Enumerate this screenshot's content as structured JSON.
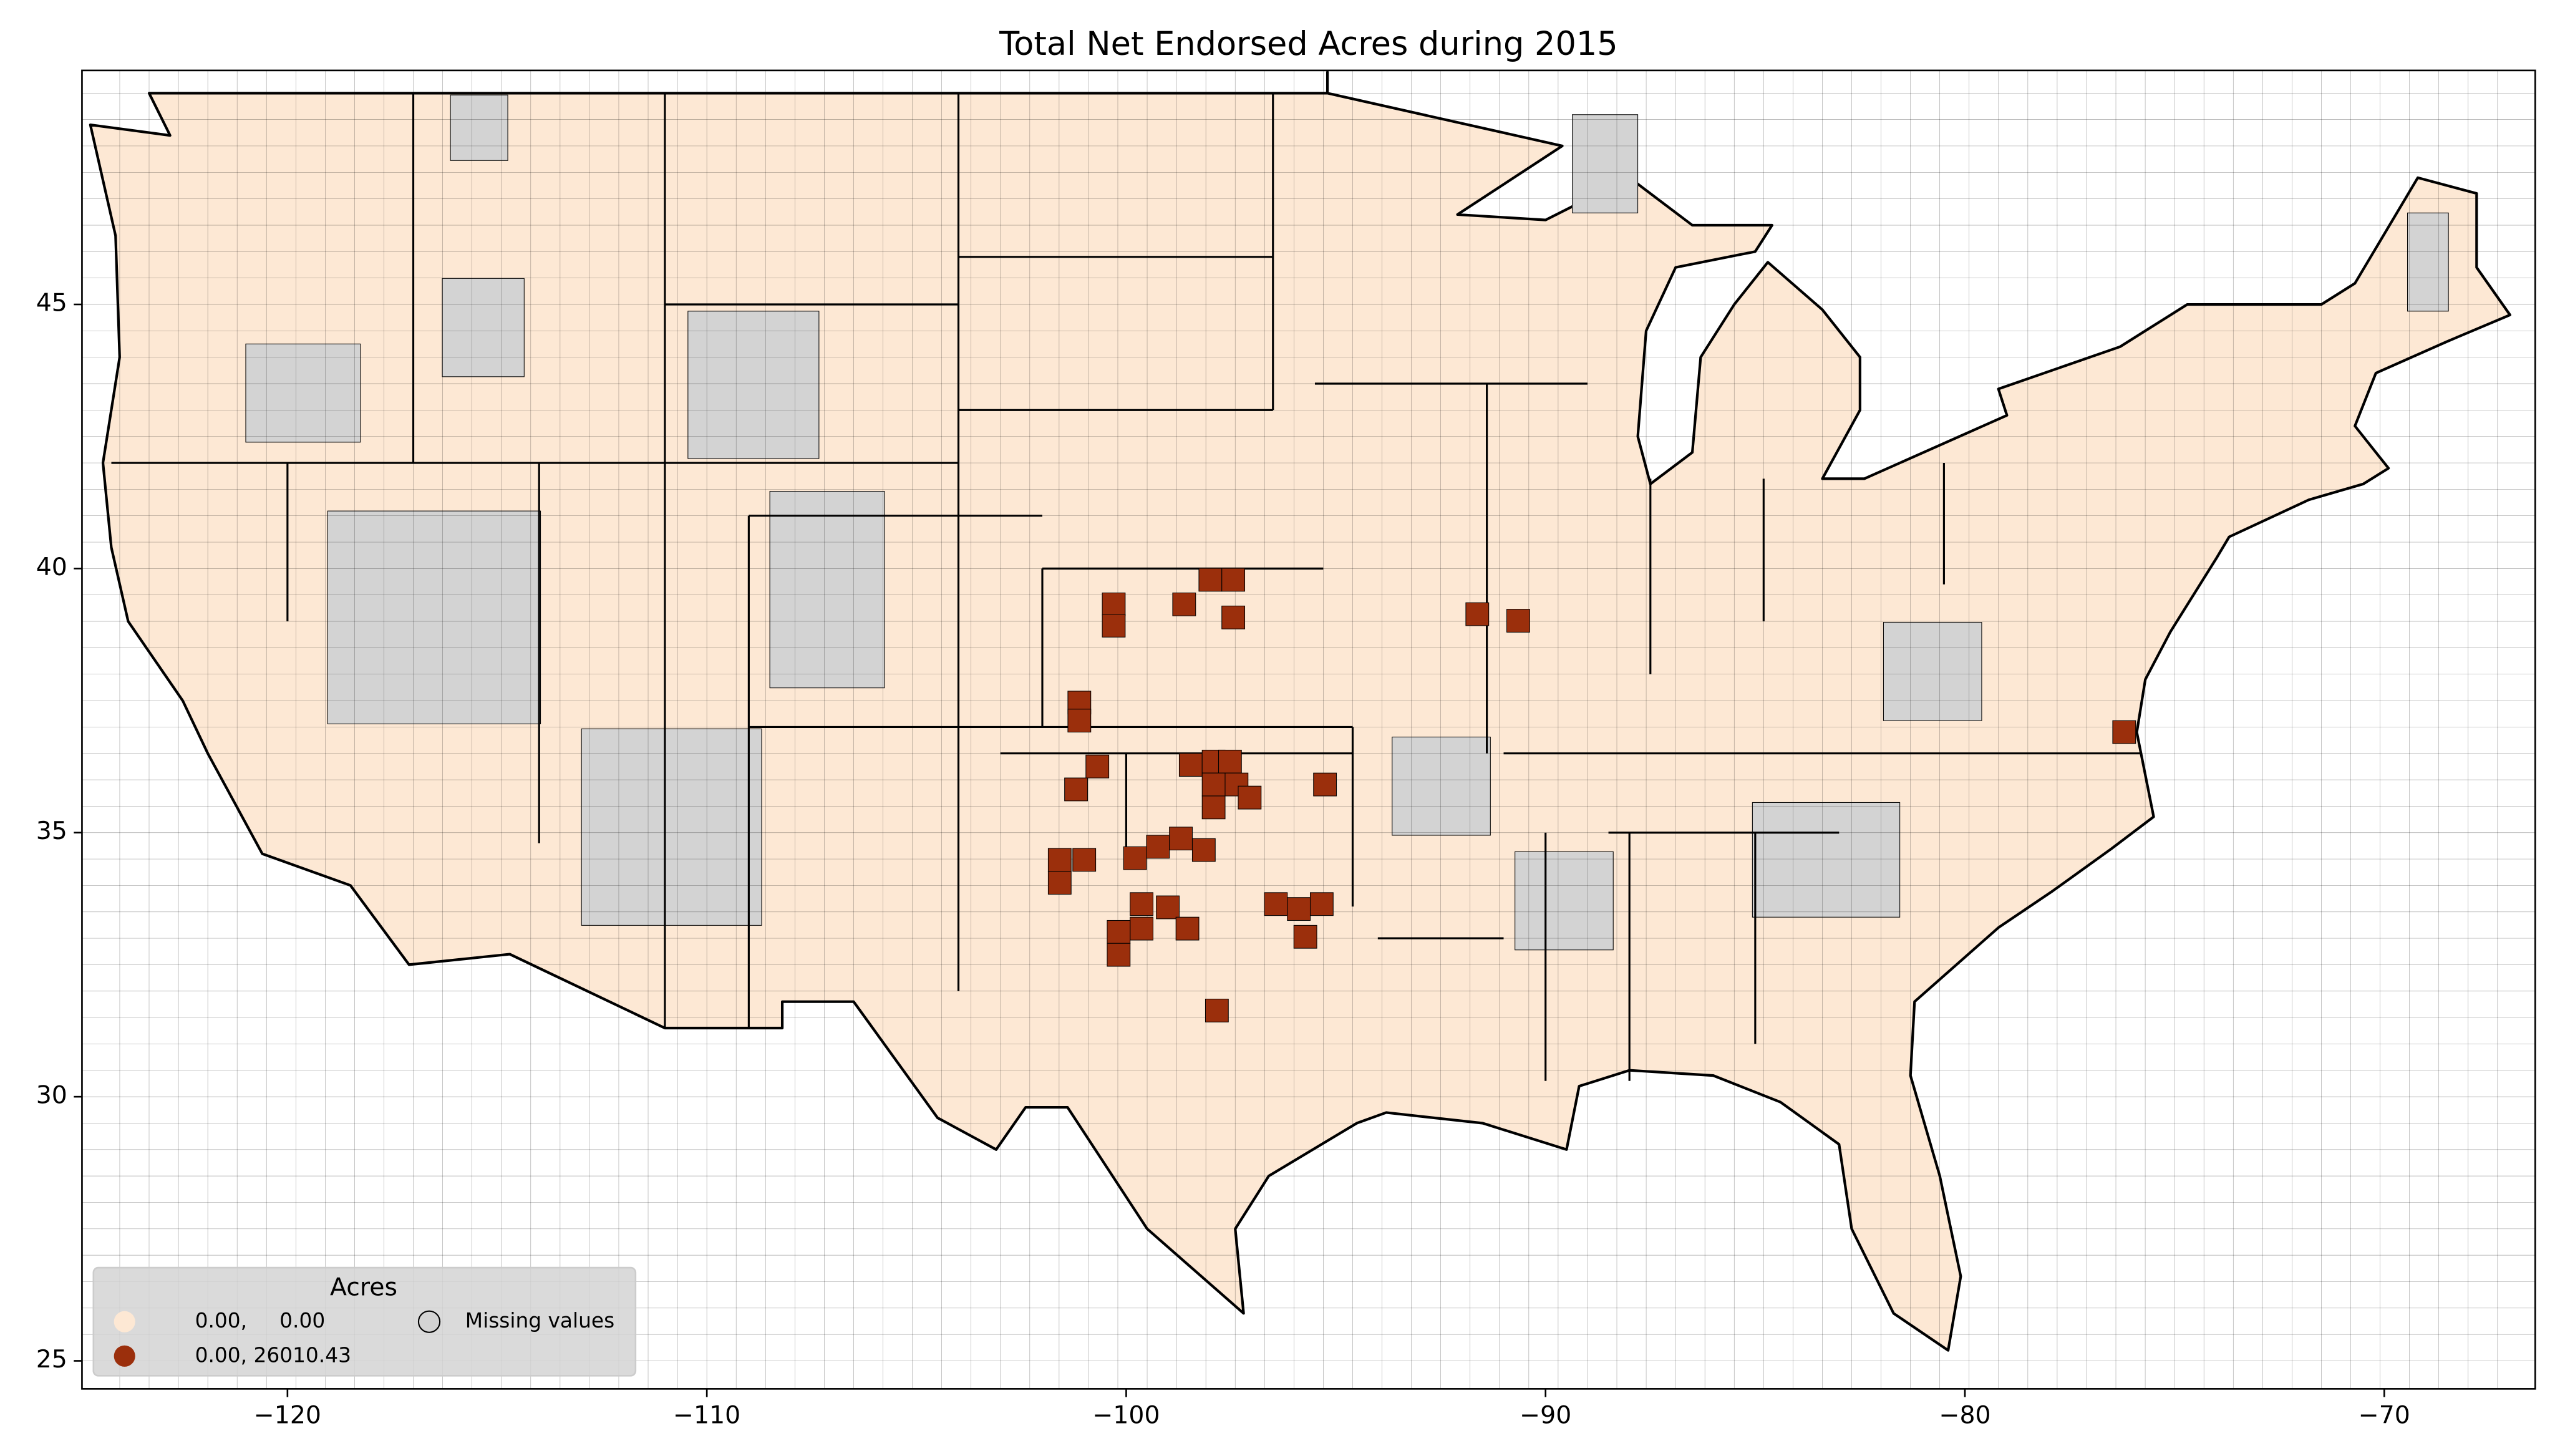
{
  "chart_data": {
    "type": "choropleth",
    "title": "Total Net Endorsed Acres during 2015",
    "xlim": [
      -124.9,
      -66.4
    ],
    "ylim": [
      24.47,
      49.43
    ],
    "xticks": [
      {
        "value": -120,
        "label": "−120"
      },
      {
        "value": -110,
        "label": "−110"
      },
      {
        "value": -100,
        "label": "−100"
      },
      {
        "value": -90,
        "label": "−90"
      },
      {
        "value": -80,
        "label": "−80"
      },
      {
        "value": -70,
        "label": "−70"
      }
    ],
    "yticks": [
      25,
      30,
      35,
      40,
      45
    ],
    "legend": {
      "title": "Acres",
      "loc": "lower left",
      "entries": [
        {
          "label": "0.00,     0.00",
          "color": "#fde8d4"
        },
        {
          "label": "0.00, 26010.43",
          "color": "#9b2f0c"
        },
        {
          "label": "Missing values",
          "color": "#d3d3d3"
        }
      ]
    }
  }
}
